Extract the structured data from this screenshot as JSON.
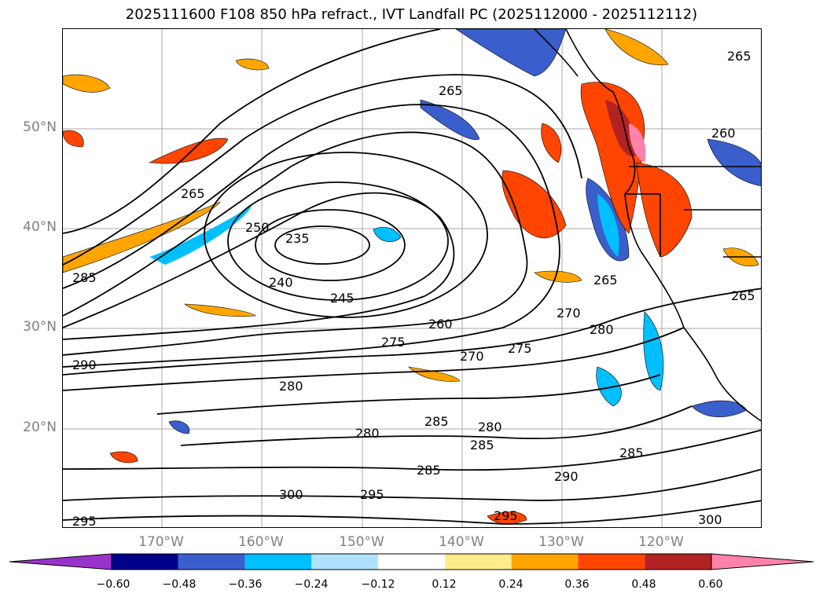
{
  "title": "2025111600 F108 850 hPa refract., IVT Landfall PC (2025112000 - 2025112112)",
  "lat_labels": [
    "50°N",
    "40°N",
    "30°N",
    "20°N"
  ],
  "lon_labels": [
    "170°W",
    "160°W",
    "150°W",
    "140°W",
    "130°W",
    "120°W"
  ],
  "contour_labels": [
    "265",
    "265",
    "265",
    "260",
    "265",
    "250",
    "235",
    "240",
    "245",
    "260",
    "275",
    "270",
    "275",
    "270",
    "280",
    "265",
    "290",
    "280",
    "280",
    "285",
    "280",
    "285",
    "285",
    "285",
    "290",
    "295",
    "300",
    "300",
    "295",
    "285",
    "295"
  ],
  "colorbar": {
    "ticks": [
      "−0.60",
      "−0.48",
      "−0.36",
      "−0.24",
      "−0.12",
      "0.12",
      "0.24",
      "0.36",
      "0.48",
      "0.60"
    ],
    "colors": [
      "#9932cc",
      "#00008b",
      "#3a5fcd",
      "#00bfff",
      "#b0e2ff",
      "#ffffff",
      "#ffec8b",
      "#ffa500",
      "#ff4500",
      "#b22222",
      "#ff82ab"
    ]
  }
}
